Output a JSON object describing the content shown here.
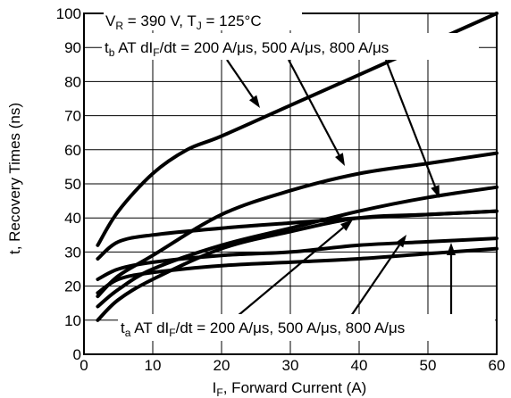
{
  "chart_data": {
    "type": "line",
    "xlabel_main": "I",
    "xlabel_sub": "F",
    "xlabel_rest": ", Forward Current (A)",
    "ylabel": "t, Recovery Times (ns)",
    "xlim": [
      0,
      60
    ],
    "ylim": [
      0,
      100
    ],
    "xticks": [
      "0",
      "10",
      "20",
      "30",
      "40",
      "50",
      "60"
    ],
    "yticks": [
      "0",
      "10",
      "20",
      "30",
      "40",
      "50",
      "60",
      "70",
      "80",
      "90",
      "100"
    ],
    "grid": true,
    "series": [
      {
        "values": [
          [
            2,
            32
          ],
          [
            5,
            42
          ],
          [
            10,
            53
          ],
          [
            15,
            60
          ],
          [
            20,
            64
          ],
          [
            30,
            73
          ],
          [
            40,
            82
          ],
          [
            50,
            91
          ],
          [
            60,
            100
          ]
        ]
      },
      {
        "values": [
          [
            2,
            28
          ],
          [
            5,
            33
          ],
          [
            10,
            35
          ],
          [
            20,
            37
          ],
          [
            30,
            38.5
          ],
          [
            40,
            40
          ],
          [
            50,
            41
          ],
          [
            60,
            42
          ]
        ]
      },
      {
        "values": [
          [
            2,
            22
          ],
          [
            5,
            25
          ],
          [
            10,
            27
          ],
          [
            20,
            29
          ],
          [
            30,
            30
          ],
          [
            40,
            32
          ],
          [
            50,
            33
          ],
          [
            60,
            34
          ]
        ]
      },
      {
        "values": [
          [
            2,
            18
          ],
          [
            5,
            22
          ],
          [
            10,
            24
          ],
          [
            20,
            26
          ],
          [
            30,
            27
          ],
          [
            40,
            28
          ],
          [
            50,
            29.5
          ],
          [
            60,
            31
          ]
        ]
      },
      {
        "values": [
          [
            2,
            17
          ],
          [
            5,
            23
          ],
          [
            10,
            29
          ],
          [
            20,
            41
          ],
          [
            30,
            48
          ],
          [
            40,
            53
          ],
          [
            50,
            56
          ],
          [
            60,
            59
          ]
        ]
      },
      {
        "values": [
          [
            2,
            14
          ],
          [
            5,
            19
          ],
          [
            10,
            25
          ],
          [
            20,
            32
          ],
          [
            30,
            37
          ],
          [
            40,
            42
          ],
          [
            50,
            46
          ],
          [
            60,
            49
          ]
        ]
      },
      {
        "values": [
          [
            2,
            10
          ],
          [
            5,
            16
          ],
          [
            10,
            22
          ],
          [
            20,
            31
          ],
          [
            30,
            36
          ],
          [
            40,
            40
          ],
          [
            50,
            41
          ],
          [
            60,
            42
          ]
        ]
      }
    ],
    "annotations": {
      "conditions": {
        "pre": "V",
        "sub1": "R",
        "mid": " = 390 V, T",
        "sub2": "J",
        "post": " = 125°C"
      },
      "tb_label": {
        "pre": "t",
        "sub1": "b",
        "mid": " AT dI",
        "sub2": "F",
        "post": "/dt = 200 A/μs, 500 A/μs, 800 A/μs"
      },
      "ta_label": {
        "pre": "t",
        "sub1": "a",
        "mid": " AT dI",
        "sub2": "F",
        "post": "/dt = 200 A/μs, 500 A/μs, 800 A/μs"
      }
    }
  }
}
